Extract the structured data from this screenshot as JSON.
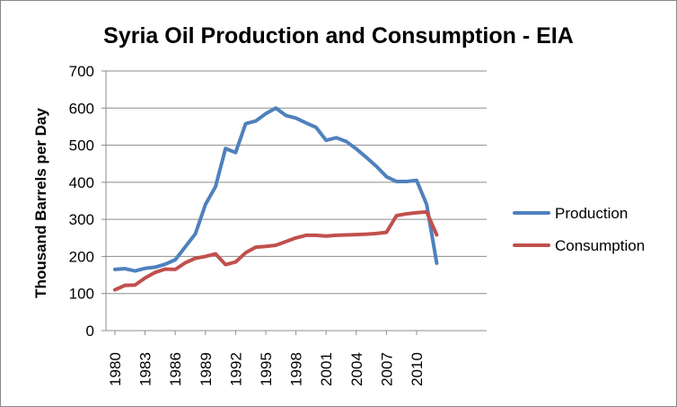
{
  "chart_data": {
    "type": "line",
    "title": "Syria Oil Production and Consumption - EIA",
    "xlabel": "",
    "ylabel": "Thousand Barrels per Day",
    "ylim": [
      0,
      700
    ],
    "yticks": [
      0,
      100,
      200,
      300,
      400,
      500,
      600,
      700
    ],
    "grid": true,
    "legend_position": "right",
    "x": [
      1980,
      1981,
      1982,
      1983,
      1984,
      1985,
      1986,
      1987,
      1988,
      1989,
      1990,
      1991,
      1992,
      1993,
      1994,
      1995,
      1996,
      1997,
      1998,
      1999,
      2000,
      2001,
      2002,
      2003,
      2004,
      2005,
      2006,
      2007,
      2008,
      2009,
      2010,
      2011,
      2012
    ],
    "xtick_labels": [
      "1980",
      "1983",
      "1986",
      "1989",
      "1992",
      "1995",
      "1998",
      "2001",
      "2004",
      "2007",
      "2010"
    ],
    "series": [
      {
        "name": "Production",
        "color": "#4f81bd",
        "values": [
          165,
          167,
          161,
          168,
          171,
          179,
          191,
          226,
          261,
          340,
          388,
          491,
          480,
          558,
          565,
          585,
          600,
          580,
          573,
          560,
          548,
          513,
          520,
          510,
          490,
          467,
          443,
          415,
          402,
          402,
          405,
          340,
          182
        ]
      },
      {
        "name": "Consumption",
        "color": "#c0504d",
        "values": [
          110,
          122,
          123,
          142,
          157,
          166,
          165,
          183,
          195,
          200,
          207,
          178,
          185,
          210,
          225,
          227,
          230,
          240,
          250,
          257,
          257,
          255,
          257,
          258,
          259,
          260,
          262,
          265,
          310,
          315,
          318,
          320,
          258
        ]
      }
    ]
  }
}
